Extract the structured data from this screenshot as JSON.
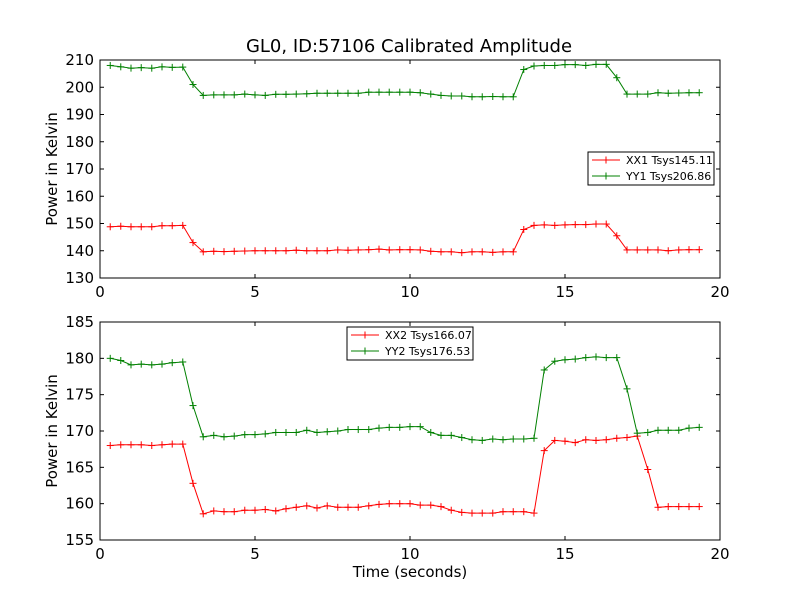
{
  "figure": {
    "title": "GL0, ID:57106 Calibrated Amplitude",
    "xlabel": "Time (seconds)"
  },
  "chart_data": [
    {
      "type": "line",
      "title": "GL0, ID:57106 Calibrated Amplitude",
      "xlabel": "",
      "ylabel": "Power in Kelvin",
      "xlim": [
        0,
        20
      ],
      "ylim": [
        130,
        210
      ],
      "x_ticks": [
        0,
        5,
        10,
        15,
        20
      ],
      "y_ticks": [
        130,
        140,
        150,
        160,
        170,
        180,
        190,
        200,
        210
      ],
      "legend_position": "center-right",
      "grid": false,
      "x": [
        0.33,
        0.67,
        1.0,
        1.33,
        1.67,
        2.0,
        2.33,
        2.67,
        3.0,
        3.33,
        3.67,
        4.0,
        4.33,
        4.67,
        5.0,
        5.33,
        5.67,
        6.0,
        6.33,
        6.67,
        7.0,
        7.33,
        7.67,
        8.0,
        8.33,
        8.67,
        9.0,
        9.33,
        9.67,
        10.0,
        10.33,
        10.67,
        11.0,
        11.33,
        11.67,
        12.0,
        12.33,
        12.67,
        13.0,
        13.33,
        13.67,
        14.0,
        14.33,
        14.67,
        15.0,
        15.33,
        15.67,
        16.0,
        16.33,
        16.67,
        17.0,
        17.33,
        17.67,
        18.0,
        18.33,
        18.67,
        19.0,
        19.33
      ],
      "series": [
        {
          "name": "XX1 Tsys145.11",
          "color": "#ff0000",
          "values": [
            148.8,
            149.0,
            148.8,
            148.8,
            148.8,
            149.2,
            149.2,
            149.3,
            143.0,
            139.6,
            139.8,
            139.7,
            139.8,
            139.9,
            140.0,
            140.0,
            140.0,
            140.0,
            140.2,
            140.0,
            140.0,
            140.0,
            140.3,
            140.2,
            140.3,
            140.4,
            140.6,
            140.3,
            140.4,
            140.4,
            140.3,
            139.8,
            139.6,
            139.6,
            139.3,
            139.6,
            139.6,
            139.4,
            139.6,
            139.6,
            147.8,
            149.3,
            149.5,
            149.3,
            149.5,
            149.6,
            149.6,
            149.8,
            149.8,
            145.5,
            140.3,
            140.3,
            140.3,
            140.3,
            140.0,
            140.3,
            140.4,
            140.4
          ]
        },
        {
          "name": "YY1 Tsys206.86",
          "color": "#008000",
          "values": [
            208.0,
            207.5,
            207.0,
            207.2,
            207.0,
            207.5,
            207.3,
            207.4,
            201.0,
            197.0,
            197.2,
            197.2,
            197.2,
            197.5,
            197.2,
            197.0,
            197.4,
            197.4,
            197.5,
            197.6,
            197.8,
            197.8,
            197.8,
            197.8,
            197.8,
            198.2,
            198.2,
            198.2,
            198.2,
            198.2,
            198.0,
            197.5,
            197.0,
            196.8,
            196.8,
            196.5,
            196.5,
            196.6,
            196.5,
            196.5,
            206.5,
            207.8,
            208.0,
            208.0,
            208.3,
            208.3,
            208.0,
            208.4,
            208.4,
            203.5,
            197.5,
            197.5,
            197.5,
            198.0,
            197.8,
            197.9,
            198.0,
            198.0
          ]
        }
      ]
    },
    {
      "type": "line",
      "title": "",
      "xlabel": "Time (seconds)",
      "ylabel": "Power in Kelvin",
      "xlim": [
        0,
        20
      ],
      "ylim": [
        155,
        185
      ],
      "x_ticks": [
        0,
        5,
        10,
        15,
        20
      ],
      "y_ticks": [
        155,
        160,
        165,
        170,
        175,
        180,
        185
      ],
      "legend_position": "top-center",
      "grid": false,
      "x": [
        0.33,
        0.67,
        1.0,
        1.33,
        1.67,
        2.0,
        2.33,
        2.67,
        3.0,
        3.33,
        3.67,
        4.0,
        4.33,
        4.67,
        5.0,
        5.33,
        5.67,
        6.0,
        6.33,
        6.67,
        7.0,
        7.33,
        7.67,
        8.0,
        8.33,
        8.67,
        9.0,
        9.33,
        9.67,
        10.0,
        10.33,
        10.67,
        11.0,
        11.33,
        11.67,
        12.0,
        12.33,
        12.67,
        13.0,
        13.33,
        13.67,
        14.0,
        14.33,
        14.67,
        15.0,
        15.33,
        15.67,
        16.0,
        16.33,
        16.67,
        17.0,
        17.33,
        17.67,
        18.0,
        18.33,
        18.67,
        19.0,
        19.33
      ],
      "series": [
        {
          "name": "XX2 Tsys166.07",
          "color": "#ff0000",
          "values": [
            168.0,
            168.1,
            168.1,
            168.1,
            168.0,
            168.1,
            168.2,
            168.2,
            162.8,
            158.6,
            159.0,
            158.9,
            158.9,
            159.1,
            159.1,
            159.2,
            159.0,
            159.3,
            159.5,
            159.7,
            159.4,
            159.7,
            159.5,
            159.5,
            159.5,
            159.7,
            159.9,
            160.0,
            160.0,
            160.0,
            159.8,
            159.8,
            159.6,
            159.1,
            158.8,
            158.7,
            158.7,
            158.7,
            158.9,
            158.9,
            158.9,
            158.7,
            167.3,
            168.7,
            168.6,
            168.4,
            168.8,
            168.7,
            168.8,
            169.0,
            169.1,
            169.3,
            164.7,
            159.5,
            159.6,
            159.6,
            159.6,
            159.6
          ]
        },
        {
          "name": "YY2 Tsys176.53",
          "color": "#008000",
          "values": [
            180.0,
            179.7,
            179.1,
            179.2,
            179.1,
            179.2,
            179.4,
            179.5,
            173.5,
            169.2,
            169.4,
            169.2,
            169.3,
            169.5,
            169.5,
            169.6,
            169.8,
            169.8,
            169.8,
            170.1,
            169.8,
            169.9,
            170.0,
            170.2,
            170.2,
            170.2,
            170.4,
            170.5,
            170.5,
            170.6,
            170.6,
            169.8,
            169.4,
            169.4,
            169.1,
            168.8,
            168.7,
            168.9,
            168.8,
            168.9,
            168.9,
            169.0,
            178.4,
            179.6,
            179.8,
            179.9,
            180.1,
            180.2,
            180.1,
            180.1,
            175.8,
            169.7,
            169.8,
            170.1,
            170.1,
            170.1,
            170.4,
            170.5
          ]
        }
      ]
    }
  ]
}
